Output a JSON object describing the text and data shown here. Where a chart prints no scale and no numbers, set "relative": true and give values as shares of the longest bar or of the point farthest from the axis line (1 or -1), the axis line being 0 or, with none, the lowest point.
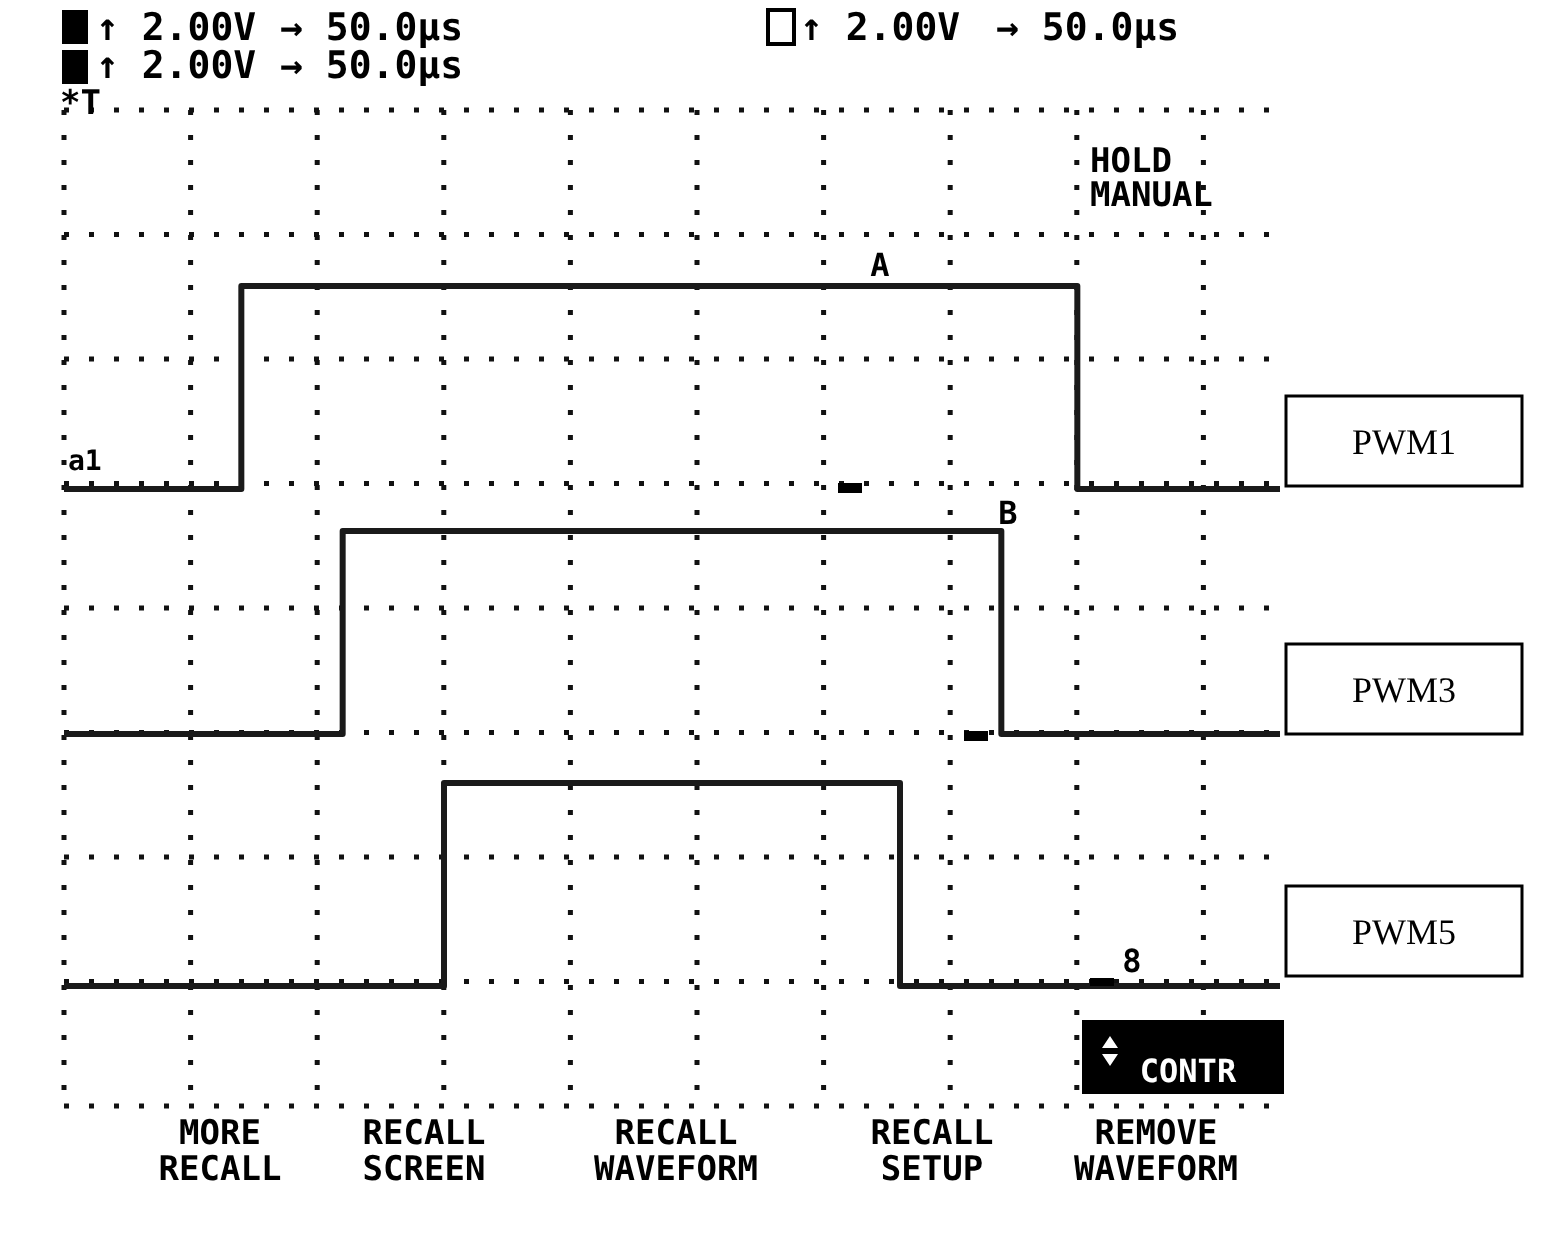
{
  "chart_data": {
    "type": "step",
    "relative": true,
    "grid": true,
    "legend": false,
    "marker": "none",
    "line_style": "solid",
    "categories": [
      null,
      null,
      null,
      null,
      null,
      null,
      null,
      null,
      null,
      null,
      null,
      null,
      null,
      null,
      null,
      null,
      null,
      null,
      null,
      null,
      null,
      null,
      null,
      null,
      null,
      null,
      null,
      null,
      null,
      null,
      null,
      null,
      null,
      null,
      null,
      null,
      null,
      null,
      null,
      null,
      null,
      null,
      null,
      null,
      null,
      null,
      null,
      null,
      null
    ],
    "series": [
      {
        "name": "PWM1",
        "color": "#1a1a1a",
        "values": [
          0.71,
          0.71,
          0.71,
          0.71,
          0.71,
          0.71,
          0.71,
          1,
          1,
          1,
          1,
          1,
          1,
          1,
          1,
          1,
          1,
          1,
          1,
          1,
          1,
          1,
          1,
          1,
          1,
          1,
          1,
          1,
          1,
          1,
          1,
          1,
          1,
          1,
          1,
          1,
          1,
          1,
          1,
          1,
          0.71,
          0.71,
          0.71,
          0.71,
          0.71,
          0.71,
          0.71,
          0.71,
          0.71
        ]
      },
      {
        "name": "PWM3",
        "color": "#1a1a1a",
        "values": [
          0.36,
          0.36,
          0.36,
          0.36,
          0.36,
          0.36,
          0.36,
          0.36,
          0.36,
          0.36,
          0.36,
          0.65,
          0.65,
          0.65,
          0.65,
          0.65,
          0.65,
          0.65,
          0.65,
          0.65,
          0.65,
          0.65,
          0.65,
          0.65,
          0.65,
          0.65,
          0.65,
          0.65,
          0.65,
          0.65,
          0.65,
          0.65,
          0.65,
          0.65,
          0.65,
          0.65,
          0.65,
          0.36,
          0.36,
          0.36,
          0.36,
          0.36,
          0.36,
          0.36,
          0.36,
          0.36,
          0.36,
          0.36,
          0.36
        ]
      },
      {
        "name": "PWM5",
        "color": "#1a1a1a",
        "values": [
          0,
          0,
          0,
          0,
          0,
          0,
          0,
          0,
          0,
          0,
          0,
          0,
          0,
          0,
          0,
          0.29,
          0.29,
          0.29,
          0.29,
          0.29,
          0.29,
          0.29,
          0.29,
          0.29,
          0.29,
          0.29,
          0.29,
          0.29,
          0.29,
          0.29,
          0.29,
          0.29,
          0.29,
          0,
          0,
          0,
          0,
          0,
          0,
          0,
          0,
          0,
          0,
          0,
          0,
          0,
          0,
          0,
          0
        ]
      }
    ],
    "annotations": [
      "↑ 2.00V",
      "→ 50.0μs",
      "↑ 2.00V",
      "→ 50.0μs",
      "↑ 2.00V",
      "→ 50.0μs",
      "*T",
      "HOLD",
      "MANUAL",
      "A",
      "B",
      "8",
      "a1",
      "CONTR",
      "MORE\nRECALL",
      "RECALL\nSCREEN",
      "RECALL\nWAVEFORM",
      "RECALL\nSETUP",
      "REMOVE\nWAVEFORM"
    ]
  }
}
